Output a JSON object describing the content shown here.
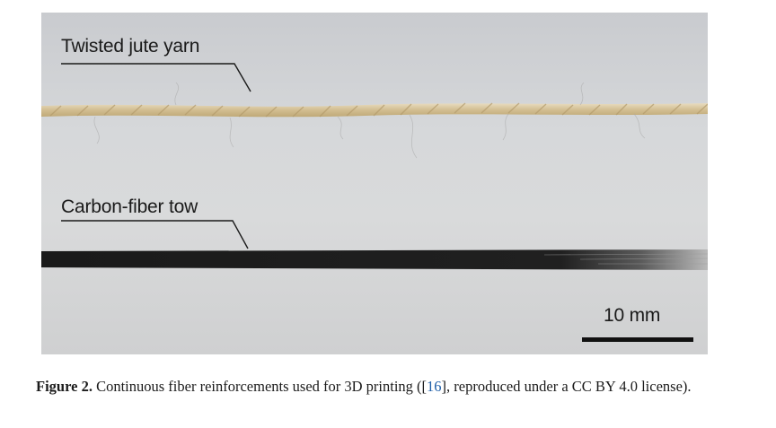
{
  "figure": {
    "labels": {
      "jute": "Twisted jute yarn",
      "carbon": "Carbon-fiber tow",
      "scale": "10 mm"
    },
    "colors": {
      "jute": "#d8c39b",
      "carbon": "#1c1c1c",
      "background": "#d6d7d9"
    }
  },
  "caption": {
    "label": "Figure 2.",
    "text_before": " Continuous fiber reinforcements used for 3D printing ([",
    "ref": "16",
    "text_after": "], reproduced under a CC BY 4.0 license)."
  }
}
